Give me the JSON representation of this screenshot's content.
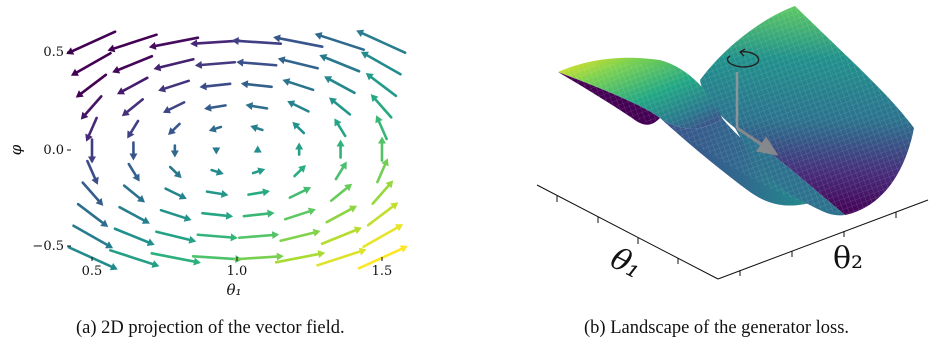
{
  "figure": {
    "captions": {
      "a": "(a) 2D projection of the vector field.",
      "b": "(b) Landscape of the generator loss."
    }
  },
  "chart_data": [
    {
      "type": "quiver",
      "panel": "a",
      "xlabel": "θ₁",
      "ylabel": "φ",
      "x_ticks": [
        "0.5",
        "1.0",
        "1.5"
      ],
      "y_ticks": [
        "0.5",
        "0.0",
        "−0.5"
      ],
      "xlim": [
        0.45,
        1.55
      ],
      "ylim": [
        -0.62,
        0.58
      ],
      "grid": false,
      "colormap": "viridis",
      "field": "rotational, arrows circulating clockwise around (1.0, 0.0)"
    },
    {
      "type": "surface",
      "panel": "b",
      "axis_labels": [
        "θ₁",
        "θ₂"
      ],
      "colormap": "viridis",
      "shape": "saddle (hyperbolic paraboloid)"
    }
  ]
}
